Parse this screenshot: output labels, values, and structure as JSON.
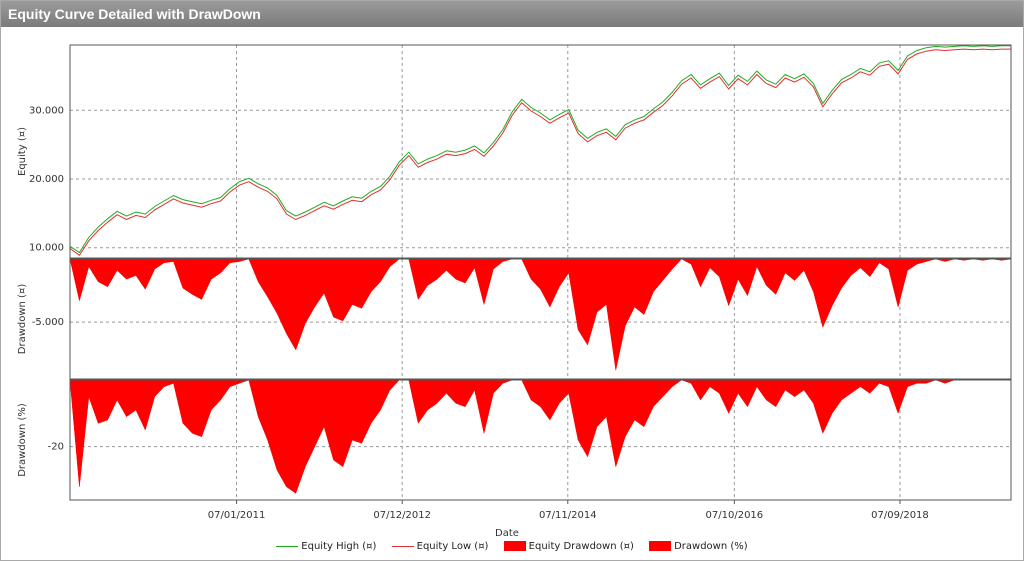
{
  "window": {
    "title": "Equity Curve Detailed with DrawDown"
  },
  "colors": {
    "equity_high": "#22aa22",
    "equity_low": "#e03030",
    "drawdown_fill": "#ff0000"
  },
  "chart_data": {
    "type": "line",
    "xlabel": "Date",
    "x_ticks": [
      "07/01/2011",
      "07/12/2012",
      "07/11/2014",
      "07/10/2016",
      "07/09/2018"
    ],
    "legend_position": "bottom",
    "grid": true,
    "panels": [
      {
        "id": "equity",
        "type": "line",
        "ylabel": "Equity (¤)",
        "ylim": [
          8500,
          39500
        ],
        "y_ticks": [
          10000,
          20000,
          30000
        ],
        "y_tick_labels": [
          "10.000",
          "20.000",
          "30.000"
        ],
        "x": [
          0,
          0.01,
          0.02,
          0.03,
          0.04,
          0.05,
          0.06,
          0.07,
          0.08,
          0.09,
          0.1,
          0.11,
          0.12,
          0.13,
          0.14,
          0.15,
          0.16,
          0.17,
          0.18,
          0.19,
          0.2,
          0.21,
          0.22,
          0.23,
          0.24,
          0.25,
          0.26,
          0.27,
          0.28,
          0.29,
          0.3,
          0.31,
          0.32,
          0.33,
          0.34,
          0.35,
          0.36,
          0.37,
          0.38,
          0.39,
          0.4,
          0.41,
          0.42,
          0.43,
          0.44,
          0.45,
          0.46,
          0.47,
          0.48,
          0.49,
          0.5,
          0.51,
          0.52,
          0.53,
          0.54,
          0.55,
          0.56,
          0.57,
          0.58,
          0.59,
          0.6,
          0.61,
          0.62,
          0.63,
          0.64,
          0.65,
          0.66,
          0.67,
          0.68,
          0.69,
          0.7,
          0.71,
          0.72,
          0.73,
          0.74,
          0.75,
          0.76,
          0.77,
          0.78,
          0.79,
          0.8,
          0.81,
          0.82,
          0.83,
          0.84,
          0.85,
          0.86,
          0.87,
          0.88,
          0.89,
          0.9,
          0.91,
          0.92,
          0.93,
          0.94,
          0.95,
          0.96,
          0.97,
          0.98,
          0.99,
          1
        ],
        "series": [
          {
            "name": "Equity High (¤)",
            "values": [
              10200,
              9300,
              11500,
              13000,
              14200,
              15300,
              14600,
              15200,
              14900,
              16000,
              16800,
              17600,
              17000,
              16700,
              16400,
              16900,
              17300,
              18600,
              19600,
              20100,
              19300,
              18700,
              17600,
              15400,
              14600,
              15200,
              15900,
              16600,
              16100,
              16800,
              17400,
              17200,
              18200,
              18900,
              20400,
              22500,
              23900,
              22200,
              22900,
              23400,
              24100,
              23900,
              24200,
              24800,
              23800,
              25300,
              27200,
              29800,
              31600,
              30400,
              29600,
              28600,
              29400,
              30100,
              27100,
              25900,
              26800,
              27300,
              26200,
              27900,
              28600,
              29100,
              30200,
              31200,
              32600,
              34300,
              35200,
              33700,
              34600,
              35400,
              33600,
              35100,
              34200,
              35700,
              34400,
              33800,
              35200,
              34600,
              35300,
              33900,
              31000,
              32900,
              34500,
              35200,
              36100,
              35600,
              36900,
              37200,
              35800,
              37900,
              38700,
              39100,
              39300,
              39200,
              39300,
              39400,
              39300,
              39400,
              39300,
              39400,
              39400
            ]
          },
          {
            "name": "Equity Low (¤)",
            "values": [
              9900,
              8900,
              11000,
              12500,
              13700,
              14800,
              14100,
              14700,
              14400,
              15500,
              16300,
              17100,
              16500,
              16200,
              15900,
              16400,
              16800,
              18100,
              19100,
              19600,
              18800,
              18200,
              17100,
              14900,
              14100,
              14700,
              15400,
              16100,
              15600,
              16300,
              16900,
              16700,
              17700,
              18400,
              19900,
              22000,
              23400,
              21700,
              22400,
              22900,
              23600,
              23400,
              23700,
              24300,
              23300,
              24800,
              26700,
              29300,
              31100,
              29900,
              29100,
              28100,
              28900,
              29600,
              26600,
              25400,
              26300,
              26800,
              25700,
              27400,
              28100,
              28600,
              29700,
              30700,
              32100,
              33800,
              34700,
              33200,
              34100,
              34900,
              33100,
              34600,
              33700,
              35200,
              33900,
              33300,
              34700,
              34100,
              34800,
              33400,
              30500,
              32400,
              34000,
              34700,
              35600,
              35100,
              36400,
              36700,
              35300,
              37400,
              38200,
              38600,
              38800,
              38700,
              38800,
              38900,
              38800,
              38900,
              38800,
              38900,
              38900
            ]
          }
        ]
      },
      {
        "id": "drawdown_abs",
        "type": "area",
        "ylabel": "Drawdown (¤)",
        "ylim": [
          -9500,
          0
        ],
        "y_ticks": [
          -5000
        ],
        "y_tick_labels": [
          "-5.000"
        ],
        "x": [
          0,
          0.01,
          0.02,
          0.03,
          0.04,
          0.05,
          0.06,
          0.07,
          0.08,
          0.09,
          0.1,
          0.11,
          0.12,
          0.13,
          0.14,
          0.15,
          0.16,
          0.17,
          0.18,
          0.19,
          0.2,
          0.21,
          0.22,
          0.23,
          0.24,
          0.25,
          0.26,
          0.27,
          0.28,
          0.29,
          0.3,
          0.31,
          0.32,
          0.33,
          0.34,
          0.35,
          0.36,
          0.37,
          0.38,
          0.39,
          0.4,
          0.41,
          0.42,
          0.43,
          0.44,
          0.45,
          0.46,
          0.47,
          0.48,
          0.49,
          0.5,
          0.51,
          0.52,
          0.53,
          0.54,
          0.55,
          0.56,
          0.57,
          0.58,
          0.59,
          0.6,
          0.61,
          0.62,
          0.63,
          0.64,
          0.65,
          0.66,
          0.67,
          0.68,
          0.69,
          0.7,
          0.71,
          0.72,
          0.73,
          0.74,
          0.75,
          0.76,
          0.77,
          0.78,
          0.79,
          0.8,
          0.81,
          0.82,
          0.83,
          0.84,
          0.85,
          0.86,
          0.87,
          0.88,
          0.89,
          0.9,
          0.91,
          0.92,
          0.93,
          0.94,
          0.95,
          0.96,
          0.97,
          0.98,
          0.99,
          1
        ],
        "series": [
          {
            "name": "Equity Drawdown (¤)",
            "values": [
              0,
              -3300,
              -600,
              -1800,
              -2200,
              -900,
              -1600,
              -1300,
              -2400,
              -800,
              -300,
              -200,
              -2300,
              -2800,
              -3200,
              -1600,
              -1100,
              -300,
              -200,
              0,
              -1800,
              -3000,
              -4300,
              -5900,
              -7200,
              -5100,
              -3800,
              -2700,
              -4600,
              -4900,
              -3600,
              -3900,
              -2600,
              -1800,
              -600,
              0,
              0,
              -3200,
              -2100,
              -1600,
              -900,
              -1600,
              -1900,
              -700,
              -3600,
              -800,
              -200,
              0,
              0,
              -1600,
              -2400,
              -3800,
              -2200,
              -1100,
              -5600,
              -6800,
              -4200,
              -3600,
              -8800,
              -5300,
              -3800,
              -4400,
              -2600,
              -1700,
              -800,
              0,
              -400,
              -2200,
              -700,
              -1400,
              -3700,
              -1600,
              -2900,
              -600,
              -2100,
              -2800,
              -1100,
              -1700,
              -900,
              -2600,
              -5400,
              -3700,
              -2300,
              -1300,
              -700,
              -1400,
              -300,
              -800,
              -3800,
              -900,
              -400,
              -200,
              0,
              -200,
              0,
              -100,
              0,
              -100,
              0,
              -100,
              0
            ]
          }
        ]
      },
      {
        "id": "drawdown_pct",
        "type": "area",
        "ylabel": "Drawdown (%)",
        "ylim": [
          -36,
          0
        ],
        "y_ticks": [
          -20
        ],
        "y_tick_labels": [
          "-20"
        ],
        "x": [
          0,
          0.01,
          0.02,
          0.03,
          0.04,
          0.05,
          0.06,
          0.07,
          0.08,
          0.09,
          0.1,
          0.11,
          0.12,
          0.13,
          0.14,
          0.15,
          0.16,
          0.17,
          0.18,
          0.19,
          0.2,
          0.21,
          0.22,
          0.23,
          0.24,
          0.25,
          0.26,
          0.27,
          0.28,
          0.29,
          0.3,
          0.31,
          0.32,
          0.33,
          0.34,
          0.35,
          0.36,
          0.37,
          0.38,
          0.39,
          0.4,
          0.41,
          0.42,
          0.43,
          0.44,
          0.45,
          0.46,
          0.47,
          0.48,
          0.49,
          0.5,
          0.51,
          0.52,
          0.53,
          0.54,
          0.55,
          0.56,
          0.57,
          0.58,
          0.59,
          0.6,
          0.61,
          0.62,
          0.63,
          0.64,
          0.65,
          0.66,
          0.67,
          0.68,
          0.69,
          0.7,
          0.71,
          0.72,
          0.73,
          0.74,
          0.75,
          0.76,
          0.77,
          0.78,
          0.79,
          0.8,
          0.81,
          0.82,
          0.83,
          0.84,
          0.85,
          0.86,
          0.87,
          0.88,
          0.89,
          0.9,
          0.91,
          0.92,
          0.93,
          0.94,
          0.95,
          0.96,
          0.97,
          0.98,
          0.99,
          1
        ],
        "series": [
          {
            "name": "Drawdown (%)",
            "values": [
              0,
              -32,
              -5,
              -13,
              -12,
              -6,
              -11,
              -9,
              -15,
              -5,
              -2,
              -1,
              -13,
              -16,
              -17,
              -9,
              -6,
              -2,
              -1,
              0,
              -11,
              -18,
              -27,
              -32,
              -34,
              -26,
              -20,
              -14,
              -24,
              -26,
              -18,
              -19,
              -13,
              -9,
              -3,
              0,
              0,
              -13,
              -9,
              -7,
              -4,
              -7,
              -8,
              -3,
              -16,
              -4,
              -1,
              0,
              0,
              -6,
              -8,
              -12,
              -7,
              -4,
              -18,
              -23,
              -14,
              -11,
              -26,
              -17,
              -12,
              -14,
              -8,
              -5,
              -2,
              0,
              -1,
              -6,
              -2,
              -4,
              -10,
              -4,
              -8,
              -2,
              -6,
              -8,
              -3,
              -5,
              -3,
              -7,
              -16,
              -10,
              -6,
              -4,
              -2,
              -4,
              -1,
              -2,
              -10,
              -2,
              -1,
              -1,
              0,
              -1,
              0,
              0,
              0,
              0,
              0,
              0,
              0
            ]
          }
        ]
      }
    ]
  },
  "legend": {
    "items": [
      {
        "label": "Equity High (¤)",
        "kind": "line",
        "color": "#22aa22"
      },
      {
        "label": "Equity Low (¤)",
        "kind": "line",
        "color": "#e03030"
      },
      {
        "label": "Equity Drawdown (¤)",
        "kind": "box",
        "color": "#ff0000"
      },
      {
        "label": "Drawdown (%)",
        "kind": "box",
        "color": "#ff0000"
      }
    ]
  }
}
